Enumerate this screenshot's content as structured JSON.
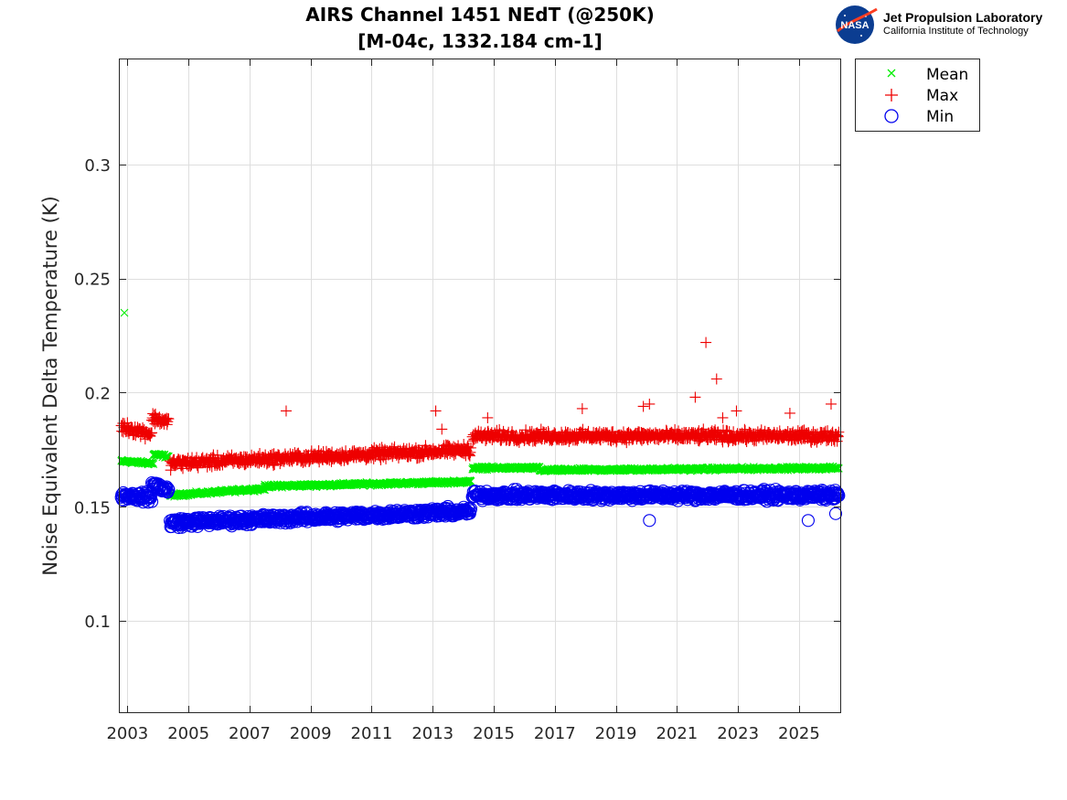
{
  "header": {
    "title_line1": "AIRS Channel 1451 NEdT (@250K)",
    "title_line2": "[M-04c, 1332.184 cm-1]"
  },
  "logo": {
    "agency": "NASA",
    "lab_name": "Jet Propulsion Laboratory",
    "institution": "California Institute of Technology"
  },
  "legend": {
    "items": [
      {
        "label": "Mean",
        "color": "#00ee00",
        "marker": "x"
      },
      {
        "label": "Max",
        "color": "#ee0000",
        "marker": "+"
      },
      {
        "label": "Min",
        "color": "#0000ee",
        "marker": "o"
      }
    ]
  },
  "chart_data": {
    "type": "scatter",
    "title": "AIRS Channel 1451 NEdT (@250K)",
    "subtitle": "[M-04c, 1332.184 cm-1]",
    "xlabel": "",
    "ylabel": "Noise Equivalent Delta Temperature (K)",
    "xlim": [
      2002.75,
      2026.35
    ],
    "ylim": [
      0.06,
      0.346
    ],
    "x_ticks": [
      2003,
      2005,
      2007,
      2009,
      2011,
      2013,
      2015,
      2017,
      2019,
      2021,
      2023,
      2025
    ],
    "x_tick_labels": [
      "2003",
      "2005",
      "2007",
      "2009",
      "2011",
      "2013",
      "2015",
      "2017",
      "2019",
      "2021",
      "2023",
      "2025"
    ],
    "y_ticks": [
      0.1,
      0.15,
      0.2,
      0.25,
      0.3
    ],
    "y_tick_labels": [
      "0.1",
      "0.15",
      "0.2",
      "0.25",
      "0.3"
    ],
    "grid": true,
    "legend_position": "outside-top-right",
    "series": [
      {
        "name": "Mean",
        "color": "#00ee00",
        "marker": "x",
        "segments": [
          {
            "x_start": 2002.8,
            "x_end": 2003.85,
            "y_start": 0.17,
            "y_end": 0.169,
            "noise": 0.001
          },
          {
            "x_start": 2003.85,
            "x_end": 2004.35,
            "y_start": 0.173,
            "y_end": 0.172,
            "noise": 0.001
          },
          {
            "x_start": 2004.4,
            "x_end": 2007.5,
            "y_start": 0.155,
            "y_end": 0.158,
            "noise": 0.001
          },
          {
            "x_start": 2007.5,
            "x_end": 2014.25,
            "y_start": 0.159,
            "y_end": 0.161,
            "noise": 0.001
          },
          {
            "x_start": 2014.3,
            "x_end": 2016.5,
            "y_start": 0.167,
            "y_end": 0.167,
            "noise": 0.001
          },
          {
            "x_start": 2016.5,
            "x_end": 2026.3,
            "y_start": 0.166,
            "y_end": 0.167,
            "noise": 0.001
          }
        ],
        "extra_points": [
          {
            "x": 2002.9,
            "y": 0.235
          }
        ]
      },
      {
        "name": "Max",
        "color": "#ee0000",
        "marker": "+",
        "segments": [
          {
            "x_start": 2002.8,
            "x_end": 2003.8,
            "y_start": 0.185,
            "y_end": 0.182,
            "noise": 0.0035
          },
          {
            "x_start": 2003.8,
            "x_end": 2004.35,
            "y_start": 0.189,
            "y_end": 0.187,
            "noise": 0.0035
          },
          {
            "x_start": 2004.4,
            "x_end": 2014.25,
            "y_start": 0.169,
            "y_end": 0.175,
            "noise": 0.0035
          },
          {
            "x_start": 2014.3,
            "x_end": 2026.3,
            "y_start": 0.181,
            "y_end": 0.181,
            "noise": 0.0035
          }
        ],
        "extra_points": [
          {
            "x": 2008.2,
            "y": 0.192
          },
          {
            "x": 2013.1,
            "y": 0.192
          },
          {
            "x": 2013.3,
            "y": 0.184
          },
          {
            "x": 2014.8,
            "y": 0.189
          },
          {
            "x": 2017.9,
            "y": 0.193
          },
          {
            "x": 2019.9,
            "y": 0.194
          },
          {
            "x": 2020.1,
            "y": 0.195
          },
          {
            "x": 2021.6,
            "y": 0.198
          },
          {
            "x": 2021.95,
            "y": 0.222
          },
          {
            "x": 2022.3,
            "y": 0.206
          },
          {
            "x": 2022.5,
            "y": 0.189
          },
          {
            "x": 2022.95,
            "y": 0.192
          },
          {
            "x": 2024.7,
            "y": 0.191
          },
          {
            "x": 2026.05,
            "y": 0.195
          }
        ]
      },
      {
        "name": "Min",
        "color": "#0000ee",
        "marker": "o",
        "segments": [
          {
            "x_start": 2002.8,
            "x_end": 2003.8,
            "y_start": 0.155,
            "y_end": 0.154,
            "noise": 0.003
          },
          {
            "x_start": 2003.8,
            "x_end": 2004.35,
            "y_start": 0.16,
            "y_end": 0.157,
            "noise": 0.003
          },
          {
            "x_start": 2004.4,
            "x_end": 2014.25,
            "y_start": 0.143,
            "y_end": 0.148,
            "noise": 0.003
          },
          {
            "x_start": 2014.3,
            "x_end": 2026.3,
            "y_start": 0.155,
            "y_end": 0.155,
            "noise": 0.003
          }
        ],
        "extra_points": [
          {
            "x": 2020.1,
            "y": 0.144
          },
          {
            "x": 2025.3,
            "y": 0.144
          },
          {
            "x": 2026.2,
            "y": 0.147
          }
        ]
      }
    ]
  }
}
